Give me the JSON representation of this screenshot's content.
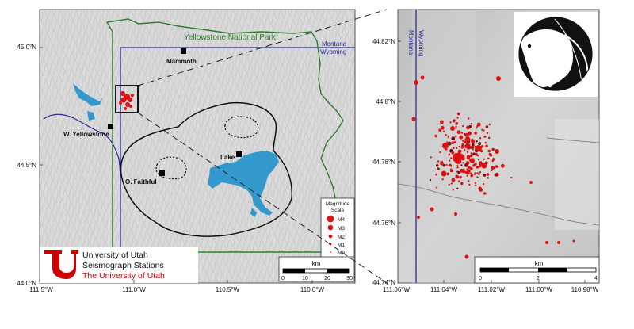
{
  "left_map": {
    "lat_labels": [
      "45.0°N",
      "44.5°N",
      "44.0°N"
    ],
    "lon_labels": [
      "111.5°W",
      "111.0°W",
      "110.5°W",
      "110.0°W"
    ],
    "park_label": "Yellowstone National Park",
    "state_label_1": "Montana",
    "state_label_2": "Wyoming",
    "towns": [
      "Mammoth",
      "W. Yellowstone",
      "Lake",
      "O. Faithful"
    ],
    "scale": {
      "unit": "km",
      "ticks": [
        "0",
        "10",
        "20",
        "30"
      ]
    },
    "magnitude_legend": {
      "title_1": "Magnitude",
      "title_2": "Scale",
      "items": [
        "M4",
        "M3",
        "M2",
        "M1",
        "M0"
      ]
    },
    "logo": {
      "line1": "University of Utah",
      "line2": "Seismograph Stations",
      "line3": "The University of Utah"
    }
  },
  "right_map": {
    "lat_labels": [
      "44.82°N",
      "44.8°N",
      "44.78°N",
      "44.76°N",
      "44.74°N"
    ],
    "lon_labels": [
      "111.06°W",
      "111.04°W",
      "111.02°W",
      "111.00°W",
      "110.98°W"
    ],
    "state_label_1": "Montana",
    "state_label_2": "Wyoming",
    "scale": {
      "unit": "km",
      "ticks": [
        "0",
        "2",
        "4"
      ]
    }
  },
  "colors": {
    "quake": "#dd1111",
    "water": "#3399cc",
    "park_boundary": "#2e7d2e",
    "state_line": "#2b2b99",
    "logo_red": "#cc0000"
  }
}
